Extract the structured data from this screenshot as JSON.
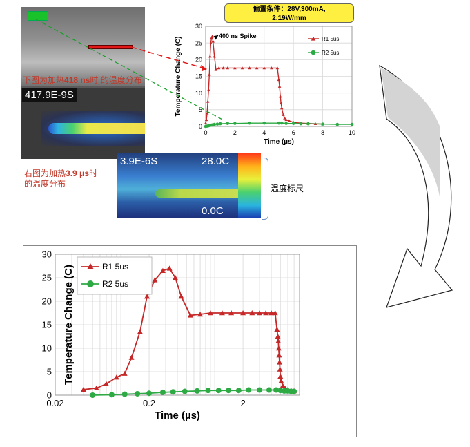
{
  "top_image": {
    "timestamp": "417.9E-9S"
  },
  "caption_top": {
    "prefix": "下图为加热",
    "value": "418 ns",
    "suffix": "时 的温度分布"
  },
  "caption_mid": {
    "prefix": "右图为加热",
    "value": "3.9 μs",
    "suffix": "时",
    "line2": "的温度分布"
  },
  "mid_image": {
    "timestamp": "3.9E-6S",
    "scale_max": "28.0C",
    "scale_min": "0.0C"
  },
  "scale_label": "温度标尺",
  "condition": {
    "line1": "偏置条件：28V,300mA,",
    "line2": "2.19W/mm"
  },
  "colors": {
    "r1": "#c62828",
    "r2": "#2eaa45",
    "note": "#c0392b",
    "cond_bg": "#ffef40"
  },
  "chart_data": [
    {
      "type": "line",
      "xlabel": "Time (µs)",
      "ylabel": "Temperature Change (C)",
      "xlim": [
        0,
        10
      ],
      "ylim": [
        0,
        30
      ],
      "xticks": [
        "0",
        "2",
        "4",
        "6",
        "8",
        "10"
      ],
      "yticks": [
        "0",
        "5",
        "10",
        "15",
        "20",
        "25",
        "30"
      ],
      "annotation": "400 ns Spike",
      "legend_position": "top-right",
      "series": [
        {
          "name": "R1 5us",
          "color": "#c62828",
          "marker": "triangle",
          "x": [
            0.0,
            0.05,
            0.1,
            0.15,
            0.2,
            0.25,
            0.3,
            0.35,
            0.4,
            0.45,
            0.5,
            0.6,
            0.7,
            0.9,
            1.2,
            1.5,
            2.0,
            2.5,
            3.0,
            3.5,
            4.0,
            4.5,
            4.9,
            5.0,
            5.05,
            5.1,
            5.15,
            5.2,
            5.3,
            5.4,
            5.5,
            5.7,
            6.0,
            6.5,
            7.0,
            7.5,
            8.0
          ],
          "y": [
            1.0,
            2.0,
            4.0,
            7.5,
            11,
            15.5,
            21.0,
            25.0,
            26.5,
            27.0,
            25.5,
            21,
            17.0,
            17.5,
            17.5,
            17.5,
            17.5,
            17.5,
            17.5,
            17.5,
            17.5,
            17.5,
            17.5,
            14.0,
            12.0,
            9.0,
            7.0,
            5.5,
            3.5,
            2.5,
            2.0,
            1.7,
            1.2,
            1.0,
            0.9,
            0.8,
            0.7
          ]
        },
        {
          "name": "R2 5us",
          "color": "#2eaa45",
          "marker": "circle",
          "x": [
            0.0,
            0.1,
            0.2,
            0.3,
            0.4,
            0.5,
            0.6,
            0.8,
            1.0,
            1.5,
            2.0,
            3.0,
            4.0,
            5.0,
            5.2,
            5.5,
            6.0,
            6.5,
            7.0,
            8.0,
            9.0,
            10.0
          ],
          "y": [
            0.0,
            0.1,
            0.2,
            0.3,
            0.4,
            0.5,
            0.6,
            0.7,
            0.8,
            0.9,
            0.9,
            1.0,
            1.0,
            1.0,
            1.0,
            0.9,
            0.9,
            0.8,
            0.8,
            0.7,
            0.6,
            0.6
          ]
        }
      ]
    },
    {
      "type": "line",
      "xlabel": "Time (µs)",
      "ylabel": "Temperature Change (C)",
      "xscale": "log",
      "xlim": [
        0.02,
        8
      ],
      "ylim": [
        0,
        30
      ],
      "xticks": [
        "0.02",
        "0.2",
        "2"
      ],
      "yticks": [
        "0",
        "5",
        "10",
        "15",
        "20",
        "25",
        "30"
      ],
      "legend_position": "top-left",
      "series": [
        {
          "name": "R1 5us",
          "color": "#c62828",
          "marker": "triangle",
          "x": [
            0.04,
            0.055,
            0.07,
            0.09,
            0.11,
            0.13,
            0.16,
            0.19,
            0.23,
            0.28,
            0.33,
            0.38,
            0.44,
            0.55,
            0.7,
            0.9,
            1.2,
            1.5,
            2.0,
            2.5,
            3.0,
            3.5,
            4.0,
            4.4,
            4.6,
            4.7,
            4.75,
            4.8,
            4.85,
            4.9,
            4.95,
            5.0,
            5.1,
            5.3,
            5.6,
            6.0,
            6.5,
            7.0
          ],
          "y": [
            1.2,
            1.5,
            2.4,
            3.8,
            4.6,
            8.0,
            13.5,
            21.0,
            24.5,
            26.5,
            27.0,
            25.0,
            21.0,
            17.0,
            17.2,
            17.5,
            17.5,
            17.5,
            17.5,
            17.5,
            17.5,
            17.5,
            17.5,
            17.5,
            14.0,
            12.5,
            11.5,
            10.0,
            8.5,
            7.0,
            5.5,
            4.0,
            3.0,
            2.0,
            1.5,
            1.2,
            1.0,
            0.9
          ]
        },
        {
          "name": "R2 5us",
          "color": "#2eaa45",
          "marker": "circle",
          "x": [
            0.05,
            0.08,
            0.11,
            0.15,
            0.2,
            0.28,
            0.36,
            0.48,
            0.65,
            0.85,
            1.1,
            1.4,
            1.8,
            2.3,
            3.0,
            3.8,
            4.5,
            5.0,
            5.5,
            6.0,
            6.5,
            7.0
          ],
          "y": [
            0.0,
            0.1,
            0.2,
            0.3,
            0.4,
            0.6,
            0.7,
            0.8,
            0.9,
            1.0,
            1.0,
            1.0,
            1.0,
            1.1,
            1.1,
            1.1,
            1.1,
            1.0,
            0.9,
            0.9,
            0.8,
            0.8
          ]
        }
      ]
    }
  ]
}
